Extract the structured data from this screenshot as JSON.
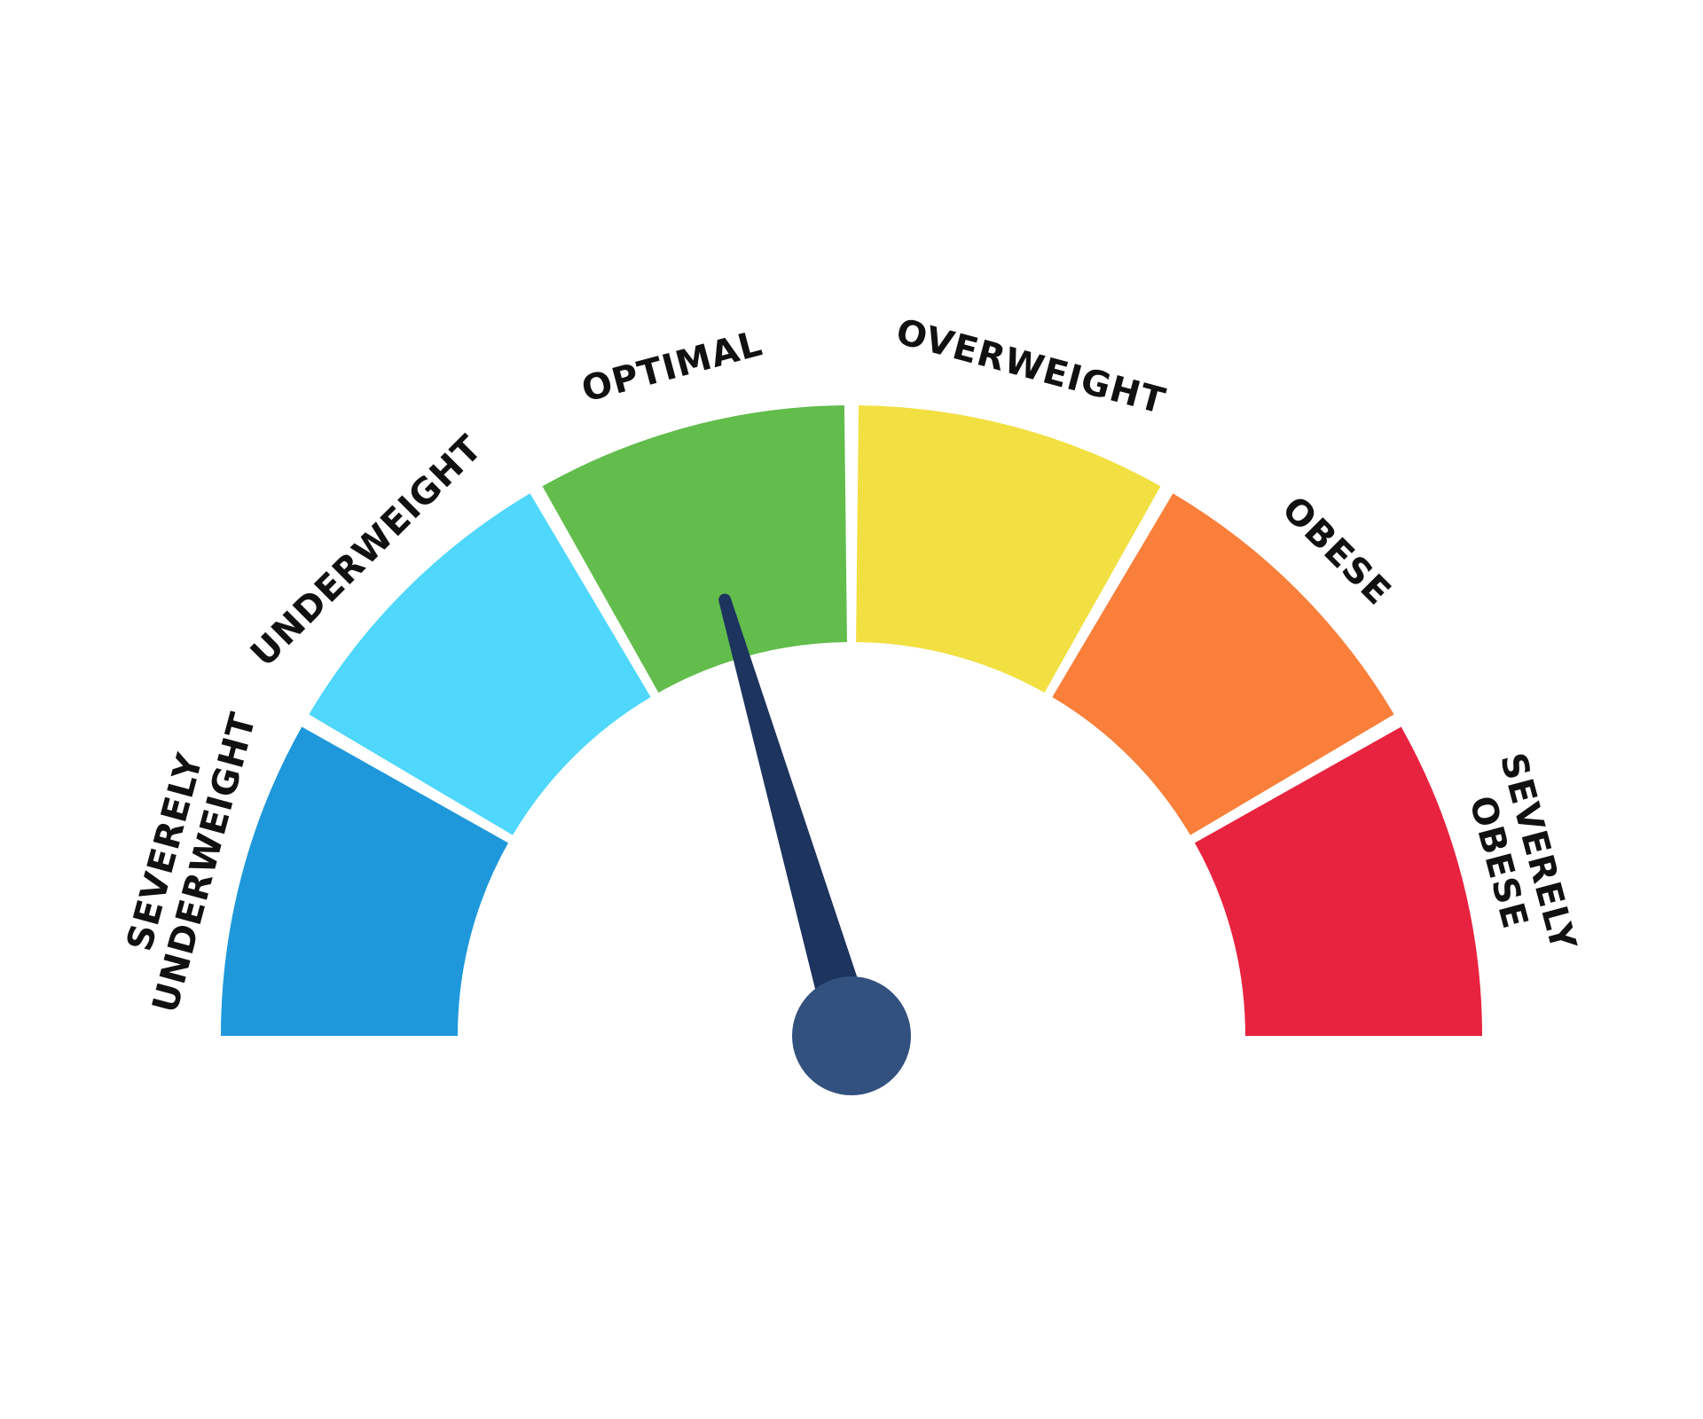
{
  "gauge": {
    "segments": [
      {
        "label_lines": [
          "SEVERELY",
          "UNDERWEIGHT"
        ],
        "color": "#1E98DB"
      },
      {
        "label_lines": [
          "UNDERWEIGHT"
        ],
        "color": "#4FD7FC"
      },
      {
        "label_lines": [
          "OPTIMAL"
        ],
        "color": "#62BD4C"
      },
      {
        "label_lines": [
          "OVERWEIGHT"
        ],
        "color": "#F2E042"
      },
      {
        "label_lines": [
          "OBESE"
        ],
        "color": "#F97F3A"
      },
      {
        "label_lines": [
          "SEVERELY",
          "OBESE"
        ],
        "color": "#E8233F"
      }
    ],
    "needle": {
      "value_fraction": 0.41,
      "color": "#1C345E",
      "hub_color": "#33517F"
    },
    "background": "#FFFFFF"
  }
}
